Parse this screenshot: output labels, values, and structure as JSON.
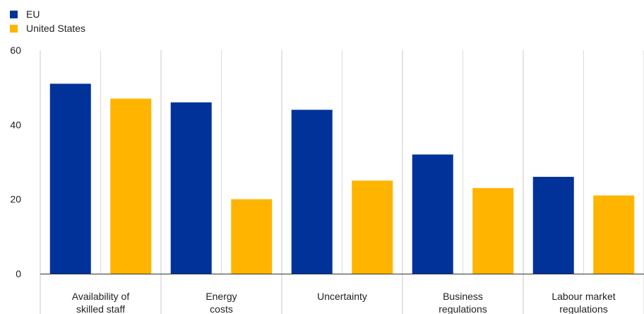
{
  "chart_data": {
    "type": "bar",
    "categories": [
      [
        "Availability of",
        "skilled staff"
      ],
      [
        "Energy",
        "costs"
      ],
      [
        "Uncertainty"
      ],
      [
        "Business",
        "regulations"
      ],
      [
        "Labour market",
        "regulations"
      ]
    ],
    "series": [
      {
        "name": "EU",
        "color": "#003299",
        "values": [
          51,
          46,
          44,
          32,
          26
        ]
      },
      {
        "name": "United States",
        "color": "#FFB400",
        "values": [
          47,
          20,
          25,
          23,
          21
        ]
      }
    ],
    "ylim": [
      0,
      60
    ],
    "yticks": [
      0,
      20,
      40,
      60
    ],
    "grid": true,
    "legend_position": "top-left"
  }
}
